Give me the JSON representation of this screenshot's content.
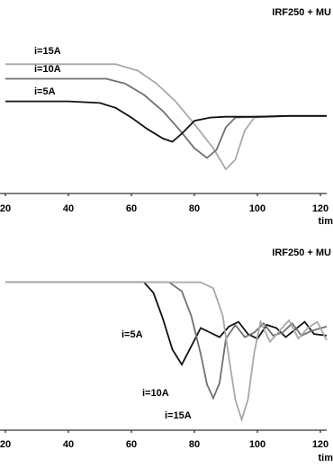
{
  "chart_data": [
    {
      "type": "line",
      "title": "IRF250 + MU",
      "x_label": "tim",
      "xlim": [
        18.3,
        122
      ],
      "xticks": [
        20,
        40,
        60,
        80,
        100,
        120
      ],
      "ylim": [
        -0.3,
        10
      ],
      "series": [
        {
          "name": "i=15A",
          "color": "#a8a8a8",
          "x": [
            20,
            55,
            62,
            68,
            74,
            80,
            86,
            90,
            93,
            96,
            99,
            110,
            122
          ],
          "values": [
            7.7,
            7.7,
            7.3,
            6.5,
            5.4,
            4.0,
            2.5,
            1.2,
            1.8,
            3.6,
            4.4,
            4.5,
            4.5
          ]
        },
        {
          "name": "i=10A",
          "color": "#707070",
          "x": [
            20,
            52,
            58,
            64,
            70,
            75,
            80,
            84,
            87,
            90,
            93,
            100,
            110,
            122
          ],
          "values": [
            6.8,
            6.8,
            6.5,
            5.8,
            4.8,
            3.7,
            2.5,
            1.9,
            2.4,
            3.8,
            4.4,
            4.45,
            4.5,
            4.5
          ]
        },
        {
          "name": "i=5A",
          "color": "#111111",
          "x": [
            20,
            40,
            50,
            55,
            60,
            65,
            70,
            73,
            76,
            80,
            85,
            90,
            100,
            110,
            122
          ],
          "values": [
            5.4,
            5.4,
            5.3,
            5.0,
            4.4,
            3.7,
            3.1,
            2.9,
            3.4,
            4.2,
            4.4,
            4.45,
            4.45,
            4.5,
            4.5
          ]
        }
      ]
    },
    {
      "type": "line",
      "title": "IRF250 + MU",
      "x_label": "tim",
      "xlim": [
        18.3,
        122
      ],
      "xticks": [
        20,
        40,
        60,
        80,
        100,
        120
      ],
      "ylim": [
        -0.5,
        10
      ],
      "series": [
        {
          "name": "i=5A",
          "color": "#111111",
          "x": [
            20,
            64,
            67,
            70,
            73,
            76,
            79,
            82,
            85,
            88,
            91,
            94,
            97,
            100,
            103,
            106,
            109,
            112,
            115,
            118,
            122
          ],
          "values": [
            9.2,
            9.2,
            8.5,
            6.8,
            4.8,
            3.8,
            5.0,
            6.2,
            5.9,
            5.6,
            6.3,
            6.6,
            5.8,
            5.5,
            6.4,
            6.2,
            5.6,
            6.1,
            6.6,
            5.8,
            5.7
          ]
        },
        {
          "name": "i=10A",
          "color": "#707070",
          "x": [
            20,
            72,
            76,
            79,
            82,
            84,
            86,
            88,
            90,
            93,
            96,
            99,
            102,
            105,
            108,
            111,
            114,
            117,
            122
          ],
          "values": [
            9.2,
            9.2,
            8.6,
            7.0,
            4.5,
            2.5,
            1.6,
            2.6,
            5.5,
            6.4,
            5.6,
            5.9,
            6.5,
            5.7,
            5.9,
            6.5,
            5.7,
            6.0,
            6.3
          ]
        },
        {
          "name": "i=15A",
          "color": "#a8a8a8",
          "x": [
            20,
            82,
            86,
            89,
            91,
            93,
            95,
            97,
            99,
            101,
            104,
            107,
            110,
            113,
            116,
            119,
            122
          ],
          "values": [
            9.2,
            9.2,
            8.8,
            7.0,
            4.2,
            1.5,
            0.2,
            1.5,
            4.6,
            6.6,
            5.3,
            6.0,
            6.7,
            5.5,
            6.2,
            6.6,
            5.4
          ]
        }
      ]
    }
  ]
}
